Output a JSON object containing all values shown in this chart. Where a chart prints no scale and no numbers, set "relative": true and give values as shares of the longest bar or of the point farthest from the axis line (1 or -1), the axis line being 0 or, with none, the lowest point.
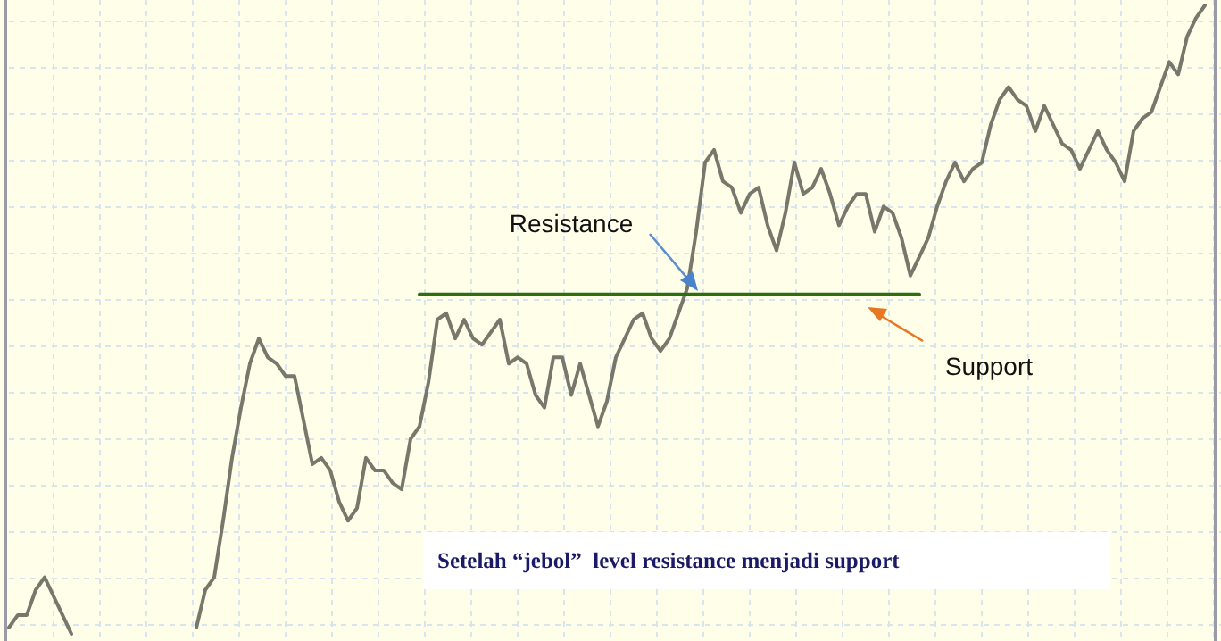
{
  "chart_data": {
    "type": "line",
    "relative": true,
    "grid": true,
    "categories": [
      null,
      null,
      null,
      null,
      null,
      null,
      null,
      null,
      null,
      null,
      null,
      null,
      null,
      null,
      null,
      null,
      null,
      null,
      null,
      null,
      null,
      null,
      null,
      null,
      null,
      null,
      null,
      null,
      null,
      null,
      null,
      null,
      null,
      null,
      null,
      null,
      null,
      null,
      null,
      null,
      null,
      null,
      null,
      null,
      null,
      null,
      null,
      null,
      null,
      null,
      null,
      null,
      null,
      null,
      null,
      null,
      null,
      null,
      null,
      null,
      null,
      null,
      null,
      null,
      null,
      null,
      null,
      null,
      null,
      null,
      null,
      null,
      null,
      null,
      null,
      null,
      null,
      null,
      null,
      null,
      null,
      null,
      null,
      null,
      null,
      null,
      null,
      null,
      null,
      null,
      null,
      null,
      null,
      null,
      null,
      null,
      null,
      null,
      null,
      null,
      null,
      null,
      null,
      null,
      null,
      null,
      null,
      null,
      null,
      null,
      null,
      null,
      null,
      null,
      null,
      null,
      null,
      null,
      null,
      null,
      null,
      null,
      null,
      null,
      null,
      null,
      null,
      null,
      null,
      null,
      null,
      null,
      null,
      null,
      null
    ],
    "series": [
      {
        "color": "#77776b",
        "values": [
          0.01,
          0.03,
          0.03,
          0.07,
          0.09,
          0.06,
          0.03,
          0,
          null,
          null,
          null,
          null,
          null,
          null,
          null,
          null,
          null,
          null,
          null,
          null,
          null,
          0.01,
          0.07,
          0.09,
          0.18,
          0.28,
          0.36,
          0.43,
          0.47,
          0.44,
          0.43,
          0.41,
          0.41,
          0.34,
          0.27,
          0.28,
          0.26,
          0.21,
          0.18,
          0.2,
          0.28,
          0.26,
          0.26,
          0.24,
          0.23,
          0.31,
          0.33,
          0.4,
          0.5,
          0.51,
          0.47,
          0.5,
          0.47,
          0.46,
          0.48,
          0.5,
          0.43,
          0.44,
          0.43,
          0.38,
          0.36,
          0.44,
          0.44,
          0.38,
          0.43,
          0.38,
          0.33,
          0.37,
          0.44,
          0.47,
          0.5,
          0.51,
          0.47,
          0.45,
          0.47,
          0.51,
          0.55,
          0.64,
          0.75,
          0.77,
          0.72,
          0.71,
          0.67,
          0.7,
          0.71,
          0.65,
          0.61,
          0.67,
          0.75,
          0.7,
          0.71,
          0.74,
          0.7,
          0.65,
          0.68,
          0.7,
          0.7,
          0.64,
          0.68,
          0.67,
          0.63,
          0.57,
          0.6,
          0.63,
          0.68,
          0.72,
          0.75,
          0.72,
          0.74,
          0.75,
          0.81,
          0.85,
          0.87,
          0.85,
          0.84,
          0.8,
          0.84,
          0.81,
          0.78,
          0.77,
          0.74,
          0.77,
          0.8,
          0.77,
          0.75,
          0.72,
          0.8,
          0.82,
          0.83,
          0.87,
          0.91,
          0.89,
          0.95,
          0.98,
          1
        ]
      },
      {
        "type": "line",
        "color": "#2e6e12",
        "values": [
          null,
          null,
          null,
          null,
          null,
          null,
          null,
          null,
          null,
          null,
          null,
          null,
          null,
          null,
          null,
          null,
          null,
          null,
          null,
          null,
          null,
          null,
          null,
          null,
          null,
          null,
          null,
          null,
          null,
          null,
          null,
          null,
          null,
          null,
          null,
          null,
          null,
          null,
          null,
          null,
          null,
          null,
          null,
          null,
          null,
          null,
          0.54,
          0.54,
          0.54,
          0.54,
          0.54,
          0.54,
          0.54,
          0.54,
          0.54,
          0.54,
          0.54,
          0.54,
          0.54,
          0.54,
          0.54,
          0.54,
          0.54,
          0.54,
          0.54,
          0.54,
          0.54,
          0.54,
          0.54,
          0.54,
          0.54,
          0.54,
          0.54,
          0.54,
          0.54,
          0.54,
          0.54,
          0.54,
          0.54,
          0.54,
          0.54,
          0.54,
          0.54,
          0.54,
          0.54,
          0.54,
          0.54,
          0.54,
          0.54,
          0.54,
          0.54,
          0.54,
          0.54,
          0.54,
          0.54,
          0.54,
          0.54,
          0.54,
          0.54,
          0.54,
          0.54,
          0.54,
          0.54,
          null,
          null,
          null,
          null,
          null,
          null,
          null,
          null,
          null,
          null,
          null,
          null,
          null,
          null,
          null,
          null,
          null,
          null,
          null,
          null,
          null,
          null,
          null,
          null,
          null,
          null,
          null,
          null,
          null,
          null,
          null,
          null
        ]
      }
    ],
    "annotations": [
      "Resistance",
      "Support",
      "Setelah “jebol”  level resistance menjadi support"
    ]
  }
}
